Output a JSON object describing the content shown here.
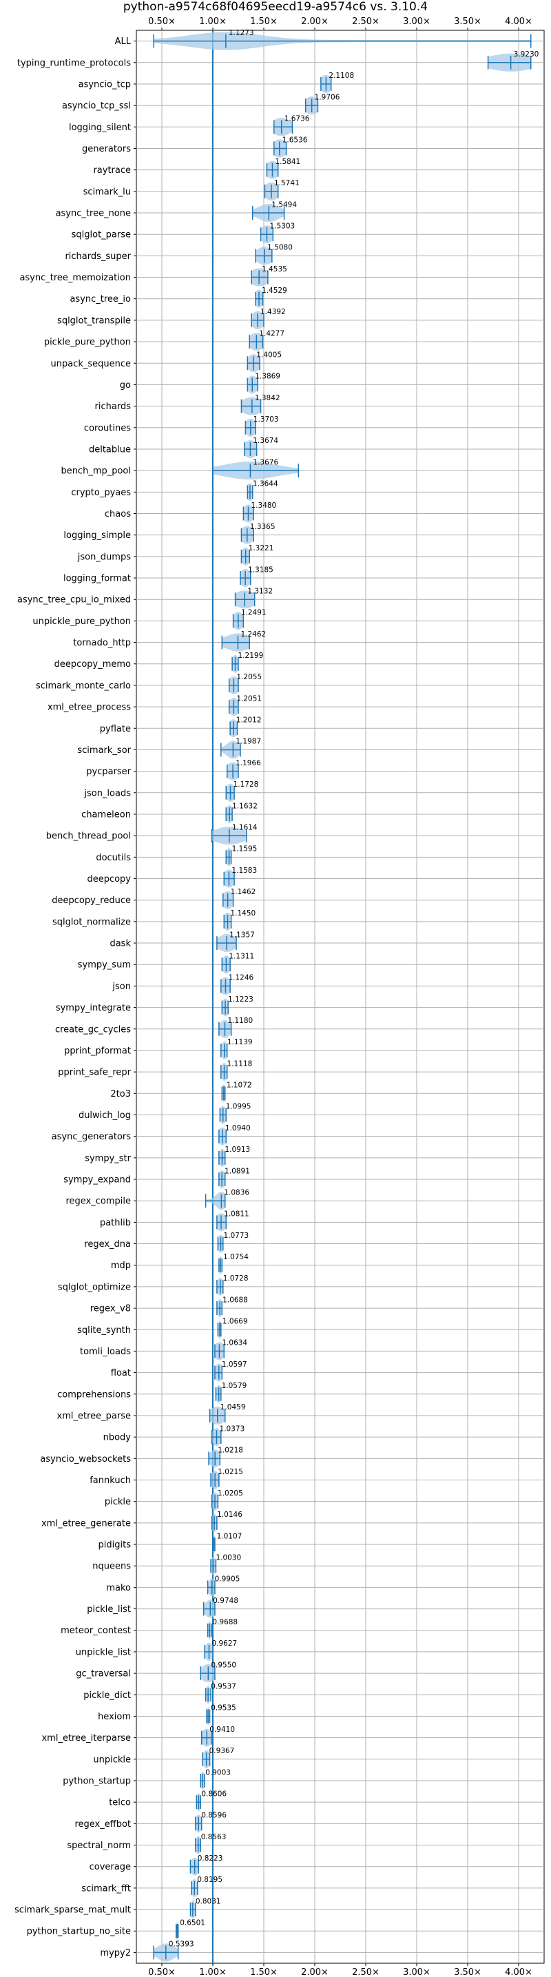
{
  "chart_data": {
    "type": "violin",
    "title": "python-a9574c68f04695eecd19-a9574c6 vs. 3.10.4",
    "x_ticks": [
      0.5,
      1.0,
      1.5,
      2.0,
      2.5,
      3.0,
      3.5,
      4.0
    ],
    "x_tick_labels": [
      "0.50×",
      "1.00×",
      "1.50×",
      "2.00×",
      "2.50×",
      "3.00×",
      "3.50×",
      "4.00×"
    ],
    "xlim": [
      0.25,
      4.25
    ],
    "reference_line": 1.0,
    "grid": true,
    "color": "#1f77b4",
    "fill_color": "#a6c9e8",
    "benchmarks": [
      {
        "name": "ALL",
        "value": 1.1273,
        "min": 0.42,
        "max": 4.12,
        "spread": 0.35
      },
      {
        "name": "typing_runtime_protocols",
        "value": 3.923,
        "min": 3.7,
        "max": 4.12,
        "spread": 0.22
      },
      {
        "name": "asyncio_tcp",
        "value": 2.1108,
        "min": 2.06,
        "max": 2.16,
        "spread": 0.06
      },
      {
        "name": "asyncio_tcp_ssl",
        "value": 1.9706,
        "min": 1.91,
        "max": 2.03,
        "spread": 0.07
      },
      {
        "name": "logging_silent",
        "value": 1.6736,
        "min": 1.6,
        "max": 1.78,
        "spread": 0.09
      },
      {
        "name": "generators",
        "value": 1.6536,
        "min": 1.6,
        "max": 1.72,
        "spread": 0.07
      },
      {
        "name": "raytrace",
        "value": 1.5841,
        "min": 1.53,
        "max": 1.64,
        "spread": 0.06
      },
      {
        "name": "scimark_lu",
        "value": 1.5741,
        "min": 1.51,
        "max": 1.64,
        "spread": 0.07
      },
      {
        "name": "async_tree_none",
        "value": 1.5494,
        "min": 1.39,
        "max": 1.7,
        "spread": 0.1
      },
      {
        "name": "sqlglot_parse",
        "value": 1.5303,
        "min": 1.47,
        "max": 1.59,
        "spread": 0.06
      },
      {
        "name": "richards_super",
        "value": 1.508,
        "min": 1.42,
        "max": 1.58,
        "spread": 0.08
      },
      {
        "name": "async_tree_memoization",
        "value": 1.4535,
        "min": 1.38,
        "max": 1.54,
        "spread": 0.09
      },
      {
        "name": "async_tree_io",
        "value": 1.4529,
        "min": 1.42,
        "max": 1.49,
        "spread": 0.04
      },
      {
        "name": "sqlglot_transpile",
        "value": 1.4392,
        "min": 1.38,
        "max": 1.5,
        "spread": 0.06
      },
      {
        "name": "pickle_pure_python",
        "value": 1.4277,
        "min": 1.36,
        "max": 1.49,
        "spread": 0.07
      },
      {
        "name": "unpack_sequence",
        "value": 1.4005,
        "min": 1.34,
        "max": 1.46,
        "spread": 0.06
      },
      {
        "name": "go",
        "value": 1.3869,
        "min": 1.34,
        "max": 1.44,
        "spread": 0.05
      },
      {
        "name": "richards",
        "value": 1.3842,
        "min": 1.28,
        "max": 1.47,
        "spread": 0.1
      },
      {
        "name": "coroutines",
        "value": 1.3703,
        "min": 1.32,
        "max": 1.42,
        "spread": 0.05
      },
      {
        "name": "deltablue",
        "value": 1.3674,
        "min": 1.31,
        "max": 1.43,
        "spread": 0.06
      },
      {
        "name": "bench_mp_pool",
        "value": 1.3676,
        "min": 1.0,
        "max": 1.84,
        "spread": 0.25
      },
      {
        "name": "crypto_pyaes",
        "value": 1.3644,
        "min": 1.34,
        "max": 1.39,
        "spread": 0.03
      },
      {
        "name": "chaos",
        "value": 1.348,
        "min": 1.3,
        "max": 1.4,
        "spread": 0.05
      },
      {
        "name": "logging_simple",
        "value": 1.3365,
        "min": 1.28,
        "max": 1.4,
        "spread": 0.06
      },
      {
        "name": "json_dumps",
        "value": 1.3221,
        "min": 1.28,
        "max": 1.36,
        "spread": 0.04
      },
      {
        "name": "logging_format",
        "value": 1.3185,
        "min": 1.27,
        "max": 1.37,
        "spread": 0.05
      },
      {
        "name": "async_tree_cpu_io_mixed",
        "value": 1.3132,
        "min": 1.22,
        "max": 1.41,
        "spread": 0.1
      },
      {
        "name": "unpickle_pure_python",
        "value": 1.2491,
        "min": 1.2,
        "max": 1.3,
        "spread": 0.05
      },
      {
        "name": "tornado_http",
        "value": 1.2462,
        "min": 1.09,
        "max": 1.36,
        "spread": 0.12
      },
      {
        "name": "deepcopy_memo",
        "value": 1.2199,
        "min": 1.19,
        "max": 1.25,
        "spread": 0.03
      },
      {
        "name": "scimark_monte_carlo",
        "value": 1.2055,
        "min": 1.16,
        "max": 1.25,
        "spread": 0.05
      },
      {
        "name": "xml_etree_process",
        "value": 1.2051,
        "min": 1.16,
        "max": 1.25,
        "spread": 0.05
      },
      {
        "name": "pyflate",
        "value": 1.2012,
        "min": 1.17,
        "max": 1.24,
        "spread": 0.04
      },
      {
        "name": "scimark_sor",
        "value": 1.1987,
        "min": 1.08,
        "max": 1.27,
        "spread": 0.06
      },
      {
        "name": "pycparser",
        "value": 1.1966,
        "min": 1.14,
        "max": 1.25,
        "spread": 0.06
      },
      {
        "name": "json_loads",
        "value": 1.1728,
        "min": 1.13,
        "max": 1.21,
        "spread": 0.04
      },
      {
        "name": "chameleon",
        "value": 1.1632,
        "min": 1.13,
        "max": 1.19,
        "spread": 0.03
      },
      {
        "name": "bench_thread_pool",
        "value": 1.1614,
        "min": 0.99,
        "max": 1.33,
        "spread": 0.14
      },
      {
        "name": "docutils",
        "value": 1.1595,
        "min": 1.13,
        "max": 1.18,
        "spread": 0.03
      },
      {
        "name": "deepcopy",
        "value": 1.1583,
        "min": 1.11,
        "max": 1.21,
        "spread": 0.05
      },
      {
        "name": "deepcopy_reduce",
        "value": 1.1462,
        "min": 1.1,
        "max": 1.2,
        "spread": 0.05
      },
      {
        "name": "sqlglot_normalize",
        "value": 1.145,
        "min": 1.11,
        "max": 1.18,
        "spread": 0.04
      },
      {
        "name": "dask",
        "value": 1.1357,
        "min": 1.04,
        "max": 1.23,
        "spread": 0.08
      },
      {
        "name": "sympy_sum",
        "value": 1.1311,
        "min": 1.09,
        "max": 1.17,
        "spread": 0.04
      },
      {
        "name": "json",
        "value": 1.1246,
        "min": 1.08,
        "max": 1.17,
        "spread": 0.05
      },
      {
        "name": "sympy_integrate",
        "value": 1.1223,
        "min": 1.09,
        "max": 1.15,
        "spread": 0.03
      },
      {
        "name": "create_gc_cycles",
        "value": 1.118,
        "min": 1.06,
        "max": 1.18,
        "spread": 0.05
      },
      {
        "name": "pprint_pformat",
        "value": 1.1139,
        "min": 1.08,
        "max": 1.14,
        "spread": 0.03
      },
      {
        "name": "pprint_safe_repr",
        "value": 1.1118,
        "min": 1.08,
        "max": 1.14,
        "spread": 0.03
      },
      {
        "name": "2to3",
        "value": 1.1072,
        "min": 1.09,
        "max": 1.12,
        "spread": 0.02
      },
      {
        "name": "dulwich_log",
        "value": 1.0995,
        "min": 1.07,
        "max": 1.13,
        "spread": 0.03
      },
      {
        "name": "async_generators",
        "value": 1.094,
        "min": 1.06,
        "max": 1.13,
        "spread": 0.04
      },
      {
        "name": "sympy_str",
        "value": 1.0913,
        "min": 1.06,
        "max": 1.12,
        "spread": 0.03
      },
      {
        "name": "sympy_expand",
        "value": 1.0891,
        "min": 1.06,
        "max": 1.12,
        "spread": 0.03
      },
      {
        "name": "regex_compile",
        "value": 1.0836,
        "min": 0.93,
        "max": 1.12,
        "spread": 0.05
      },
      {
        "name": "pathlib",
        "value": 1.0811,
        "min": 1.04,
        "max": 1.13,
        "spread": 0.05
      },
      {
        "name": "regex_dna",
        "value": 1.0773,
        "min": 1.05,
        "max": 1.1,
        "spread": 0.03
      },
      {
        "name": "mdp",
        "value": 1.0754,
        "min": 1.06,
        "max": 1.09,
        "spread": 0.015
      },
      {
        "name": "sqlglot_optimize",
        "value": 1.0728,
        "min": 1.04,
        "max": 1.1,
        "spread": 0.03
      },
      {
        "name": "regex_v8",
        "value": 1.0688,
        "min": 1.04,
        "max": 1.09,
        "spread": 0.025
      },
      {
        "name": "sqlite_synth",
        "value": 1.0669,
        "min": 1.05,
        "max": 1.08,
        "spread": 0.015
      },
      {
        "name": "tomli_loads",
        "value": 1.0634,
        "min": 1.02,
        "max": 1.11,
        "spread": 0.05
      },
      {
        "name": "float",
        "value": 1.0597,
        "min": 1.02,
        "max": 1.09,
        "spread": 0.04
      },
      {
        "name": "comprehensions",
        "value": 1.0579,
        "min": 1.03,
        "max": 1.08,
        "spread": 0.025
      },
      {
        "name": "xml_etree_parse",
        "value": 1.0459,
        "min": 0.97,
        "max": 1.12,
        "spread": 0.07
      },
      {
        "name": "nbody",
        "value": 1.0373,
        "min": 0.99,
        "max": 1.08,
        "spread": 0.04
      },
      {
        "name": "asyncio_websockets",
        "value": 1.0218,
        "min": 0.96,
        "max": 1.07,
        "spread": 0.05
      },
      {
        "name": "fannkuch",
        "value": 1.0215,
        "min": 0.98,
        "max": 1.06,
        "spread": 0.04
      },
      {
        "name": "pickle",
        "value": 1.0205,
        "min": 0.99,
        "max": 1.05,
        "spread": 0.03
      },
      {
        "name": "xml_etree_generate",
        "value": 1.0146,
        "min": 0.99,
        "max": 1.04,
        "spread": 0.025
      },
      {
        "name": "pidigits",
        "value": 1.0107,
        "min": 1.0,
        "max": 1.02,
        "spread": 0.01
      },
      {
        "name": "nqueens",
        "value": 1.003,
        "min": 0.98,
        "max": 1.03,
        "spread": 0.025
      },
      {
        "name": "mako",
        "value": 0.9905,
        "min": 0.95,
        "max": 1.02,
        "spread": 0.03
      },
      {
        "name": "pickle_list",
        "value": 0.9748,
        "min": 0.91,
        "max": 1.02,
        "spread": 0.05
      },
      {
        "name": "meteor_contest",
        "value": 0.9688,
        "min": 0.95,
        "max": 0.99,
        "spread": 0.015
      },
      {
        "name": "unpickle_list",
        "value": 0.9627,
        "min": 0.92,
        "max": 1.0,
        "spread": 0.04
      },
      {
        "name": "gc_traversal",
        "value": 0.955,
        "min": 0.88,
        "max": 1.02,
        "spread": 0.07
      },
      {
        "name": "pickle_dict",
        "value": 0.9537,
        "min": 0.93,
        "max": 0.98,
        "spread": 0.02
      },
      {
        "name": "hexiom",
        "value": 0.9535,
        "min": 0.94,
        "max": 0.97,
        "spread": 0.015
      },
      {
        "name": "xml_etree_iterparse",
        "value": 0.941,
        "min": 0.89,
        "max": 0.99,
        "spread": 0.05
      },
      {
        "name": "unpickle",
        "value": 0.9367,
        "min": 0.9,
        "max": 0.97,
        "spread": 0.035
      },
      {
        "name": "python_startup",
        "value": 0.9003,
        "min": 0.88,
        "max": 0.92,
        "spread": 0.02
      },
      {
        "name": "telco",
        "value": 0.8606,
        "min": 0.84,
        "max": 0.88,
        "spread": 0.02
      },
      {
        "name": "regex_effbot",
        "value": 0.8596,
        "min": 0.83,
        "max": 0.89,
        "spread": 0.03
      },
      {
        "name": "spectral_norm",
        "value": 0.8563,
        "min": 0.83,
        "max": 0.88,
        "spread": 0.025
      },
      {
        "name": "coverage",
        "value": 0.8223,
        "min": 0.78,
        "max": 0.86,
        "spread": 0.04
      },
      {
        "name": "scimark_fft",
        "value": 0.8195,
        "min": 0.79,
        "max": 0.85,
        "spread": 0.03
      },
      {
        "name": "scimark_sparse_mat_mult",
        "value": 0.8031,
        "min": 0.78,
        "max": 0.83,
        "spread": 0.025
      },
      {
        "name": "python_startup_no_site",
        "value": 0.6501,
        "min": 0.64,
        "max": 0.66,
        "spread": 0.01
      },
      {
        "name": "mypy2",
        "value": 0.5393,
        "min": 0.42,
        "max": 0.66,
        "spread": 0.08
      }
    ]
  }
}
